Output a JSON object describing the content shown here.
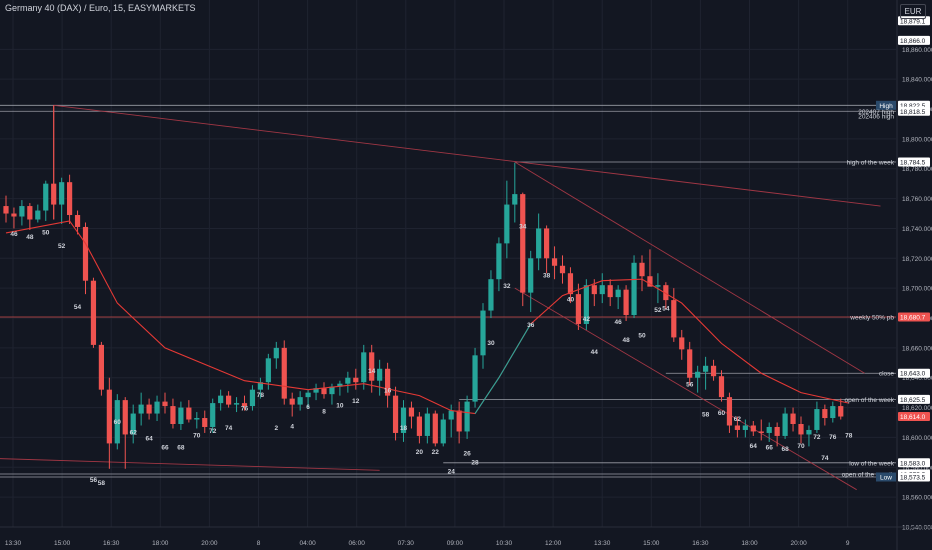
{
  "header": {
    "title": "Germany 40 (DAX) / Euro, 15, EASYMARKETS",
    "currency": "EUR"
  },
  "chart_data": {
    "type": "candlestick",
    "title": "Germany 40 (DAX) / Euro, 15, EASYMARKETS",
    "ylim": [
      18540,
      18885
    ],
    "y_ticks": [
      18540,
      18560,
      18580,
      18600,
      18620,
      18640,
      18660,
      18680,
      18700,
      18720,
      18740,
      18760,
      18780,
      18800,
      18820,
      18840,
      18860
    ],
    "x_ticks": [
      "13:30",
      "15:00",
      "16:30",
      "18:00",
      "20:00",
      "8",
      "04:00",
      "06:00",
      "07:30",
      "09:00",
      "10:30",
      "12:00",
      "13:30",
      "15:00",
      "16:30",
      "18:00",
      "20:00",
      "9"
    ],
    "colors": {
      "up": "#26a69a",
      "down": "#ef5350",
      "background": "#131722",
      "text": "#d1d4dc",
      "ma": "#e53935",
      "ma_up": "#26a69a"
    },
    "candles": [
      {
        "o": 18755,
        "h": 18762,
        "l": 18744,
        "c": 18750
      },
      {
        "o": 18750,
        "h": 18754,
        "l": 18740,
        "c": 18748
      },
      {
        "o": 18748,
        "h": 18759,
        "l": 18742,
        "c": 18755
      },
      {
        "o": 18755,
        "h": 18757,
        "l": 18739,
        "c": 18746
      },
      {
        "o": 18746,
        "h": 18756,
        "l": 18744,
        "c": 18752
      },
      {
        "o": 18752,
        "h": 18772,
        "l": 18745,
        "c": 18770
      },
      {
        "o": 18770,
        "h": 18822,
        "l": 18746,
        "c": 18756
      },
      {
        "o": 18756,
        "h": 18774,
        "l": 18743,
        "c": 18771
      },
      {
        "o": 18771,
        "h": 18776,
        "l": 18743,
        "c": 18749
      },
      {
        "o": 18749,
        "h": 18752,
        "l": 18736,
        "c": 18741
      },
      {
        "o": 18741,
        "h": 18744,
        "l": 18696,
        "c": 18705
      },
      {
        "o": 18705,
        "h": 18707,
        "l": 18660,
        "c": 18662
      },
      {
        "o": 18662,
        "h": 18664,
        "l": 18628,
        "c": 18632
      },
      {
        "o": 18632,
        "h": 18640,
        "l": 18579,
        "c": 18596
      },
      {
        "o": 18596,
        "h": 18629,
        "l": 18592,
        "c": 18625
      },
      {
        "o": 18625,
        "h": 18627,
        "l": 18579,
        "c": 18602
      },
      {
        "o": 18602,
        "h": 18622,
        "l": 18596,
        "c": 18616
      },
      {
        "o": 18616,
        "h": 18630,
        "l": 18608,
        "c": 18622
      },
      {
        "o": 18622,
        "h": 18626,
        "l": 18612,
        "c": 18616
      },
      {
        "o": 18616,
        "h": 18628,
        "l": 18611,
        "c": 18624
      },
      {
        "o": 18624,
        "h": 18630,
        "l": 18616,
        "c": 18621
      },
      {
        "o": 18621,
        "h": 18626,
        "l": 18606,
        "c": 18609
      },
      {
        "o": 18609,
        "h": 18624,
        "l": 18605,
        "c": 18620
      },
      {
        "o": 18620,
        "h": 18625,
        "l": 18610,
        "c": 18612
      },
      {
        "o": 18612,
        "h": 18617,
        "l": 18606,
        "c": 18613
      },
      {
        "o": 18613,
        "h": 18618,
        "l": 18603,
        "c": 18607
      },
      {
        "o": 18607,
        "h": 18626,
        "l": 18603,
        "c": 18623
      },
      {
        "o": 18623,
        "h": 18632,
        "l": 18618,
        "c": 18628
      },
      {
        "o": 18628,
        "h": 18631,
        "l": 18620,
        "c": 18622
      },
      {
        "o": 18622,
        "h": 18627,
        "l": 18617,
        "c": 18623
      },
      {
        "o": 18623,
        "h": 18628,
        "l": 18618,
        "c": 18621
      },
      {
        "o": 18621,
        "h": 18635,
        "l": 18618,
        "c": 18632
      },
      {
        "o": 18632,
        "h": 18640,
        "l": 18626,
        "c": 18637
      },
      {
        "o": 18637,
        "h": 18656,
        "l": 18632,
        "c": 18653
      },
      {
        "o": 18653,
        "h": 18664,
        "l": 18646,
        "c": 18660
      },
      {
        "o": 18660,
        "h": 18665,
        "l": 18622,
        "c": 18626
      },
      {
        "o": 18626,
        "h": 18630,
        "l": 18614,
        "c": 18622
      },
      {
        "o": 18622,
        "h": 18631,
        "l": 18618,
        "c": 18627
      },
      {
        "o": 18627,
        "h": 18632,
        "l": 18620,
        "c": 18630
      },
      {
        "o": 18630,
        "h": 18636,
        "l": 18625,
        "c": 18633
      },
      {
        "o": 18633,
        "h": 18637,
        "l": 18626,
        "c": 18629
      },
      {
        "o": 18629,
        "h": 18636,
        "l": 18622,
        "c": 18634
      },
      {
        "o": 18634,
        "h": 18638,
        "l": 18628,
        "c": 18636
      },
      {
        "o": 18636,
        "h": 18644,
        "l": 18630,
        "c": 18640
      },
      {
        "o": 18640,
        "h": 18646,
        "l": 18632,
        "c": 18637
      },
      {
        "o": 18637,
        "h": 18662,
        "l": 18632,
        "c": 18657
      },
      {
        "o": 18657,
        "h": 18662,
        "l": 18630,
        "c": 18638
      },
      {
        "o": 18638,
        "h": 18652,
        "l": 18628,
        "c": 18646
      },
      {
        "o": 18646,
        "h": 18650,
        "l": 18620,
        "c": 18628
      },
      {
        "o": 18628,
        "h": 18634,
        "l": 18598,
        "c": 18603
      },
      {
        "o": 18603,
        "h": 18625,
        "l": 18597,
        "c": 18620
      },
      {
        "o": 18620,
        "h": 18624,
        "l": 18606,
        "c": 18614
      },
      {
        "o": 18614,
        "h": 18617,
        "l": 18596,
        "c": 18601
      },
      {
        "o": 18601,
        "h": 18620,
        "l": 18596,
        "c": 18616
      },
      {
        "o": 18616,
        "h": 18618,
        "l": 18594,
        "c": 18596
      },
      {
        "o": 18596,
        "h": 18616,
        "l": 18594,
        "c": 18612
      },
      {
        "o": 18612,
        "h": 18622,
        "l": 18600,
        "c": 18618
      },
      {
        "o": 18618,
        "h": 18624,
        "l": 18596,
        "c": 18604
      },
      {
        "o": 18604,
        "h": 18628,
        "l": 18599,
        "c": 18624
      },
      {
        "o": 18624,
        "h": 18660,
        "l": 18620,
        "c": 18655
      },
      {
        "o": 18655,
        "h": 18690,
        "l": 18646,
        "c": 18685
      },
      {
        "o": 18685,
        "h": 18712,
        "l": 18680,
        "c": 18706
      },
      {
        "o": 18706,
        "h": 18734,
        "l": 18698,
        "c": 18730
      },
      {
        "o": 18730,
        "h": 18772,
        "l": 18720,
        "c": 18756
      },
      {
        "o": 18756,
        "h": 18784,
        "l": 18744,
        "c": 18763
      },
      {
        "o": 18763,
        "h": 18764,
        "l": 18688,
        "c": 18697
      },
      {
        "o": 18697,
        "h": 18725,
        "l": 18684,
        "c": 18720
      },
      {
        "o": 18720,
        "h": 18750,
        "l": 18712,
        "c": 18740
      },
      {
        "o": 18740,
        "h": 18742,
        "l": 18710,
        "c": 18720
      },
      {
        "o": 18720,
        "h": 18728,
        "l": 18706,
        "c": 18715
      },
      {
        "o": 18715,
        "h": 18722,
        "l": 18703,
        "c": 18710
      },
      {
        "o": 18710,
        "h": 18714,
        "l": 18690,
        "c": 18696
      },
      {
        "o": 18696,
        "h": 18703,
        "l": 18672,
        "c": 18676
      },
      {
        "o": 18676,
        "h": 18706,
        "l": 18672,
        "c": 18702
      },
      {
        "o": 18702,
        "h": 18706,
        "l": 18688,
        "c": 18696
      },
      {
        "o": 18696,
        "h": 18710,
        "l": 18690,
        "c": 18702
      },
      {
        "o": 18702,
        "h": 18706,
        "l": 18688,
        "c": 18694
      },
      {
        "o": 18694,
        "h": 18702,
        "l": 18686,
        "c": 18699
      },
      {
        "o": 18699,
        "h": 18702,
        "l": 18678,
        "c": 18682
      },
      {
        "o": 18682,
        "h": 18722,
        "l": 18680,
        "c": 18717
      },
      {
        "o": 18717,
        "h": 18722,
        "l": 18698,
        "c": 18708
      },
      {
        "o": 18708,
        "h": 18726,
        "l": 18702,
        "c": 18701
      },
      {
        "o": 18701,
        "h": 18710,
        "l": 18690,
        "c": 18702
      },
      {
        "o": 18702,
        "h": 18704,
        "l": 18686,
        "c": 18692
      },
      {
        "o": 18692,
        "h": 18700,
        "l": 18664,
        "c": 18667
      },
      {
        "o": 18667,
        "h": 18672,
        "l": 18652,
        "c": 18659
      },
      {
        "o": 18659,
        "h": 18664,
        "l": 18635,
        "c": 18640
      },
      {
        "o": 18640,
        "h": 18648,
        "l": 18630,
        "c": 18644
      },
      {
        "o": 18644,
        "h": 18654,
        "l": 18632,
        "c": 18648
      },
      {
        "o": 18648,
        "h": 18652,
        "l": 18638,
        "c": 18641
      },
      {
        "o": 18641,
        "h": 18645,
        "l": 18624,
        "c": 18627
      },
      {
        "o": 18627,
        "h": 18630,
        "l": 18603,
        "c": 18608
      },
      {
        "o": 18608,
        "h": 18614,
        "l": 18600,
        "c": 18605
      },
      {
        "o": 18605,
        "h": 18612,
        "l": 18600,
        "c": 18608
      },
      {
        "o": 18608,
        "h": 18611,
        "l": 18601,
        "c": 18604
      },
      {
        "o": 18604,
        "h": 18612,
        "l": 18598,
        "c": 18603
      },
      {
        "o": 18603,
        "h": 18610,
        "l": 18597,
        "c": 18607
      },
      {
        "o": 18607,
        "h": 18610,
        "l": 18594,
        "c": 18601
      },
      {
        "o": 18601,
        "h": 18620,
        "l": 18599,
        "c": 18616
      },
      {
        "o": 18616,
        "h": 18620,
        "l": 18604,
        "c": 18609
      },
      {
        "o": 18609,
        "h": 18614,
        "l": 18596,
        "c": 18602
      },
      {
        "o": 18602,
        "h": 18608,
        "l": 18594,
        "c": 18605
      },
      {
        "o": 18605,
        "h": 18624,
        "l": 18603,
        "c": 18619
      },
      {
        "o": 18619,
        "h": 18622,
        "l": 18608,
        "c": 18613
      },
      {
        "o": 18613,
        "h": 18624,
        "l": 18610,
        "c": 18621
      },
      {
        "o": 18621,
        "h": 18626,
        "l": 18612,
        "c": 18614
      }
    ],
    "moving_average": [
      {
        "i": 0,
        "v": 18737
      },
      {
        "i": 8,
        "v": 18745
      },
      {
        "i": 10,
        "v": 18730
      },
      {
        "i": 14,
        "v": 18690
      },
      {
        "i": 20,
        "v": 18660
      },
      {
        "i": 30,
        "v": 18638
      },
      {
        "i": 38,
        "v": 18632
      },
      {
        "i": 45,
        "v": 18636
      },
      {
        "i": 52,
        "v": 18628
      },
      {
        "i": 56,
        "v": 18618
      },
      {
        "i": 59,
        "v": 18616
      },
      {
        "i": 62,
        "v": 18640
      },
      {
        "i": 66,
        "v": 18676
      },
      {
        "i": 70,
        "v": 18695
      },
      {
        "i": 75,
        "v": 18705
      },
      {
        "i": 80,
        "v": 18706
      },
      {
        "i": 85,
        "v": 18690
      },
      {
        "i": 90,
        "v": 18663
      },
      {
        "i": 95,
        "v": 18643
      },
      {
        "i": 100,
        "v": 18630
      },
      {
        "i": 106,
        "v": 18623
      }
    ],
    "ma_up_segment": {
      "from": 59,
      "to": 69
    },
    "price_labels": [
      {
        "y": 18879.1,
        "text": "18,879.1",
        "style": "boxed"
      },
      {
        "y": 18866.0,
        "text": "18,866.0",
        "style": "boxed"
      },
      {
        "y": 18822.5,
        "text": "18,822.5",
        "style": "boxed"
      },
      {
        "y": 18822.5,
        "text": "High",
        "style": "tag"
      },
      {
        "y": 18818.5,
        "text": "18,818.5",
        "style": "boxed"
      },
      {
        "y": 18784.5,
        "text": "18,784.5",
        "style": "boxed"
      },
      {
        "y": 18680.7,
        "text": "18,680.7",
        "style": "red"
      },
      {
        "y": 18643.0,
        "text": "18,643.0",
        "style": "boxed"
      },
      {
        "y": 18625.5,
        "text": "18,625.5",
        "style": "boxed"
      },
      {
        "y": 18614.0,
        "text": "18,614.0",
        "style": "red"
      },
      {
        "y": 18583.0,
        "text": "18,583.0",
        "style": "boxed"
      },
      {
        "y": 18575.5,
        "text": "18,575.5",
        "style": "boxed"
      },
      {
        "y": 18575.0,
        "text": "18,575.0",
        "style": "plain"
      },
      {
        "y": 18573.5,
        "text": "18,573.5",
        "style": "boxed"
      },
      {
        "y": 18573.5,
        "text": "Low",
        "style": "tag"
      }
    ],
    "horizontal_levels": [
      {
        "y": 18822.5,
        "from": 0,
        "label": "",
        "color": "#b2b5be"
      },
      {
        "y": 18818.5,
        "from": 0,
        "label": "202407 high",
        "color": "#b2b5be"
      },
      {
        "y": 18818.5,
        "from": 1000,
        "label": "202406 high",
        "color": "#b2b5be"
      },
      {
        "y": 18784.5,
        "from": 64,
        "label": "high of the week",
        "color": "#b2b5be"
      },
      {
        "y": 18680.7,
        "from": 0,
        "label": "weekly 50% pb",
        "color": "#ef5350"
      },
      {
        "y": 18643.0,
        "from": 83,
        "label": "close",
        "color": "#b2b5be"
      },
      {
        "y": 18625.5,
        "from": 57,
        "label": "open of the week",
        "color": "#b2b5be"
      },
      {
        "y": 18583.0,
        "from": 55,
        "label": "low of the week",
        "color": "#b2b5be"
      },
      {
        "y": 18575.5,
        "from": 0,
        "label": "open of the month",
        "color": "#b2b5be"
      },
      {
        "y": 18573.5,
        "from": 0,
        "label": "",
        "color": "#b2b5be"
      }
    ],
    "trend_lines": [
      {
        "x1": 6,
        "y1": 18822.5,
        "x2": 110,
        "y2": 18755
      },
      {
        "x1": 64,
        "y1": 18784.5,
        "x2": 108,
        "y2": 18643
      },
      {
        "x1": 64,
        "y1": 18700,
        "x2": 107,
        "y2": 18565
      },
      {
        "x1": -2,
        "y1": 18586,
        "x2": 47,
        "y2": 18578
      }
    ],
    "wave_counts": [
      {
        "i": 1,
        "t": "46",
        "y": 18735
      },
      {
        "i": 3,
        "t": "48",
        "y": 18733
      },
      {
        "i": 5,
        "t": "50",
        "y": 18736
      },
      {
        "i": 7,
        "t": "52",
        "y": 18727
      },
      {
        "i": 9,
        "t": "54",
        "y": 18686
      },
      {
        "i": 11,
        "t": "56",
        "y": 18570
      },
      {
        "i": 12,
        "t": "58",
        "y": 18568
      },
      {
        "i": 14,
        "t": "60",
        "y": 18609
      },
      {
        "i": 16,
        "t": "62",
        "y": 18602
      },
      {
        "i": 18,
        "t": "64",
        "y": 18598
      },
      {
        "i": 20,
        "t": "66",
        "y": 18592
      },
      {
        "i": 22,
        "t": "68",
        "y": 18592
      },
      {
        "i": 24,
        "t": "70",
        "y": 18600
      },
      {
        "i": 26,
        "t": "72",
        "y": 18603
      },
      {
        "i": 28,
        "t": "74",
        "y": 18605
      },
      {
        "i": 30,
        "t": "76",
        "y": 18618
      },
      {
        "i": 32,
        "t": "78",
        "y": 18627
      },
      {
        "i": 34,
        "t": "2",
        "y": 18605
      },
      {
        "i": 36,
        "t": "4",
        "y": 18606
      },
      {
        "i": 38,
        "t": "6",
        "y": 18619
      },
      {
        "i": 40,
        "t": "8",
        "y": 18616
      },
      {
        "i": 42,
        "t": "10",
        "y": 18620
      },
      {
        "i": 44,
        "t": "12",
        "y": 18623
      },
      {
        "i": 46,
        "t": "14",
        "y": 18643
      },
      {
        "i": 48,
        "t": "16",
        "y": 18630
      },
      {
        "i": 50,
        "t": "18",
        "y": 18605
      },
      {
        "i": 52,
        "t": "20",
        "y": 18589
      },
      {
        "i": 54,
        "t": "22",
        "y": 18589
      },
      {
        "i": 56,
        "t": "24",
        "y": 18576
      },
      {
        "i": 58,
        "t": "26",
        "y": 18588
      },
      {
        "i": 59,
        "t": "28",
        "y": 18582
      },
      {
        "i": 61,
        "t": "30",
        "y": 18662
      },
      {
        "i": 63,
        "t": "32",
        "y": 18700
      },
      {
        "i": 65,
        "t": "34",
        "y": 18740
      },
      {
        "i": 66,
        "t": "36",
        "y": 18674
      },
      {
        "i": 68,
        "t": "38",
        "y": 18707
      },
      {
        "i": 71,
        "t": "40",
        "y": 18691
      },
      {
        "i": 73,
        "t": "42",
        "y": 18678
      },
      {
        "i": 74,
        "t": "44",
        "y": 18656
      },
      {
        "i": 77,
        "t": "46",
        "y": 18676
      },
      {
        "i": 78,
        "t": "48",
        "y": 18664
      },
      {
        "i": 80,
        "t": "50",
        "y": 18667
      },
      {
        "i": 82,
        "t": "52",
        "y": 18684
      },
      {
        "i": 83,
        "t": "54",
        "y": 18685
      },
      {
        "i": 86,
        "t": "56",
        "y": 18634
      },
      {
        "i": 88,
        "t": "58",
        "y": 18614
      },
      {
        "i": 90,
        "t": "60",
        "y": 18615
      },
      {
        "i": 92,
        "t": "62",
        "y": 18611
      },
      {
        "i": 94,
        "t": "64",
        "y": 18593
      },
      {
        "i": 96,
        "t": "66",
        "y": 18592
      },
      {
        "i": 98,
        "t": "68",
        "y": 18591
      },
      {
        "i": 100,
        "t": "70",
        "y": 18593
      },
      {
        "i": 102,
        "t": "72",
        "y": 18599
      },
      {
        "i": 103,
        "t": "74",
        "y": 18585
      },
      {
        "i": 104,
        "t": "76",
        "y": 18599
      },
      {
        "i": 106,
        "t": "78",
        "y": 18600
      }
    ]
  }
}
